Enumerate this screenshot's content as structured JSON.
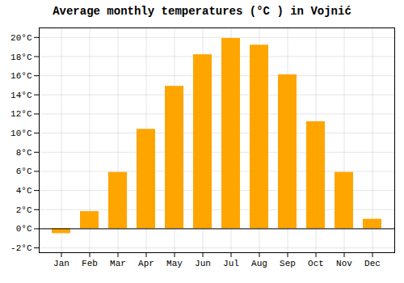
{
  "chart_data": {
    "type": "bar",
    "title": "Average monthly temperatures (°C ) in Vojnić",
    "categories": [
      "Jan",
      "Feb",
      "Mar",
      "Apr",
      "May",
      "Jun",
      "Jul",
      "Aug",
      "Sep",
      "Oct",
      "Nov",
      "Dec"
    ],
    "values": [
      -0.5,
      1.8,
      5.9,
      10.4,
      14.9,
      18.2,
      19.9,
      19.2,
      16.1,
      11.2,
      5.9,
      1.0
    ],
    "color": "#FFA500",
    "ylim": [
      -2.5,
      21
    ],
    "yticks": [
      {
        "value": -2,
        "label": "-2°C"
      },
      {
        "value": 0,
        "label": "0°C"
      },
      {
        "value": 2,
        "label": "2°C"
      },
      {
        "value": 4,
        "label": "4°C"
      },
      {
        "value": 6,
        "label": "6°C"
      },
      {
        "value": 8,
        "label": "8°C"
      },
      {
        "value": 10,
        "label": "10°C"
      },
      {
        "value": 12,
        "label": "12°C"
      },
      {
        "value": 14,
        "label": "14°C"
      },
      {
        "value": 16,
        "label": "16°C"
      },
      {
        "value": 18,
        "label": "18°C"
      },
      {
        "value": 20,
        "label": "20°C"
      }
    ],
    "grid": true
  }
}
